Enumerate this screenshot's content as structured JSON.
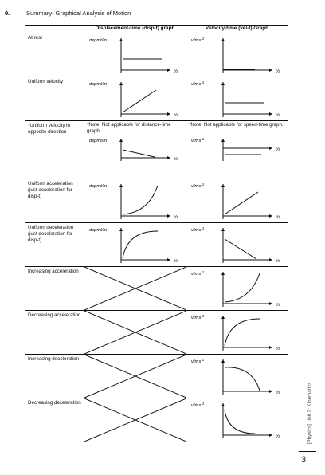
{
  "question": {
    "number": "9.",
    "title": "Summary- Graphical Analysis of Motion"
  },
  "headers": {
    "blank": "",
    "disp": "Displacement-time (disp-t) graph",
    "vel": "Velocity-time (vel-t) Graph"
  },
  "axes": {
    "disp_y": "dspmt/m",
    "vel_y": "v/ms",
    "vel_y_sup": "-1",
    "t": "t/s"
  },
  "rows": [
    {
      "label": "At rest",
      "disp": "horizontal-line",
      "vel": "zero-line"
    },
    {
      "label": "Uniform velocity",
      "disp": "rising-line",
      "vel": "horizontal-line"
    },
    {
      "label": "*Uniform velocity in opposite direction",
      "disp_note": "*Note: Not applicable for distance-time graph.",
      "vel_note": "*Note: Not applicable for speed-time graph.",
      "disp": "falling-line",
      "vel": "negative-horizontal"
    },
    {
      "label": "Uniform acceleration (just acceleration for disp-t)",
      "disp": "concave-up",
      "vel": "rising-line"
    },
    {
      "label": "Uniform deceleration (just deceleration for disp-t)",
      "disp": "concave-down",
      "vel": "falling-line"
    },
    {
      "label": "Increasing acceleration",
      "disp": "cross",
      "vel": "concave-up"
    },
    {
      "label": "Decreasing acceleration",
      "disp": "cross",
      "vel": "concave-down"
    },
    {
      "label": "Increasing deceleration",
      "disp": "cross",
      "vel": "falling-concave-down"
    },
    {
      "label": "Decreasing deceleration",
      "disp": "cross",
      "vel": "falling-concave-up"
    }
  ],
  "sidebar": "[Physics] Unit 2: Kinematics",
  "page_number": "3"
}
